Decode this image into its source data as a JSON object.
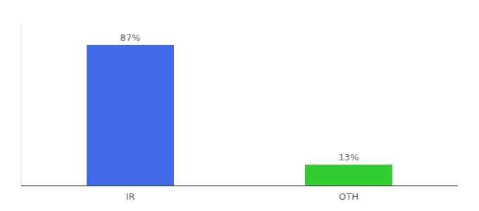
{
  "chart_data": {
    "type": "bar",
    "categories": [
      "IR",
      "OTH"
    ],
    "values": [
      87,
      13
    ],
    "value_labels": [
      "87%",
      "13%"
    ],
    "colors": [
      "#4169e8",
      "#33cc33"
    ],
    "ylim": [
      0,
      100
    ],
    "data_labels": true,
    "tick_labels": "x"
  }
}
